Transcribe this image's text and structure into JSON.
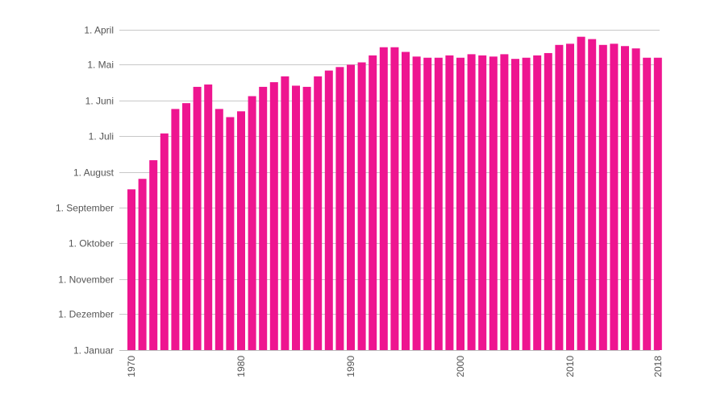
{
  "chart_data": {
    "type": "bar",
    "title": "",
    "xlabel": "",
    "ylabel": "",
    "y_axis": "day of year (date), earlier dates at top",
    "y_ticks": [
      {
        "label": "1. April",
        "day": 91
      },
      {
        "label": "1. Mai",
        "day": 121
      },
      {
        "label": "1. Juni",
        "day": 152
      },
      {
        "label": "1. Juli",
        "day": 182
      },
      {
        "label": "1. August",
        "day": 213
      },
      {
        "label": "1. September",
        "day": 244
      },
      {
        "label": "1. Oktober",
        "day": 274
      },
      {
        "label": "1. November",
        "day": 305
      },
      {
        "label": "1. Dezember",
        "day": 335
      },
      {
        "label": "1. Januar",
        "day": 366
      }
    ],
    "ylim": [
      366,
      91
    ],
    "x_ticks": [
      "1970",
      "1980",
      "1990",
      "2000",
      "2010",
      "2018"
    ],
    "categories": [
      "1970",
      "1971",
      "1972",
      "1973",
      "1974",
      "1975",
      "1976",
      "1977",
      "1978",
      "1979",
      "1980",
      "1981",
      "1982",
      "1983",
      "1984",
      "1985",
      "1986",
      "1987",
      "1988",
      "1989",
      "1990",
      "1991",
      "1992",
      "1993",
      "1994",
      "1995",
      "1996",
      "1997",
      "1998",
      "1999",
      "2000",
      "2001",
      "2002",
      "2003",
      "2004",
      "2005",
      "2006",
      "2007",
      "2008",
      "2009",
      "2010",
      "2011",
      "2012",
      "2013",
      "2014",
      "2015",
      "2016",
      "2017",
      "2018"
    ],
    "values": [
      228,
      219,
      203,
      180,
      159,
      154,
      140,
      138,
      159,
      166,
      161,
      148,
      140,
      136,
      131,
      139,
      140,
      131,
      126,
      123,
      121,
      119,
      113,
      106,
      106,
      110,
      114,
      115,
      115,
      113,
      115,
      112,
      113,
      114,
      112,
      116,
      115,
      113,
      111,
      104,
      103,
      97,
      99,
      104,
      103,
      105,
      107,
      115,
      115
    ],
    "grid": true,
    "legend": "none",
    "colors": {
      "bar": "#ee1590",
      "grid": "#c8c8c8",
      "text": "#555555"
    }
  }
}
